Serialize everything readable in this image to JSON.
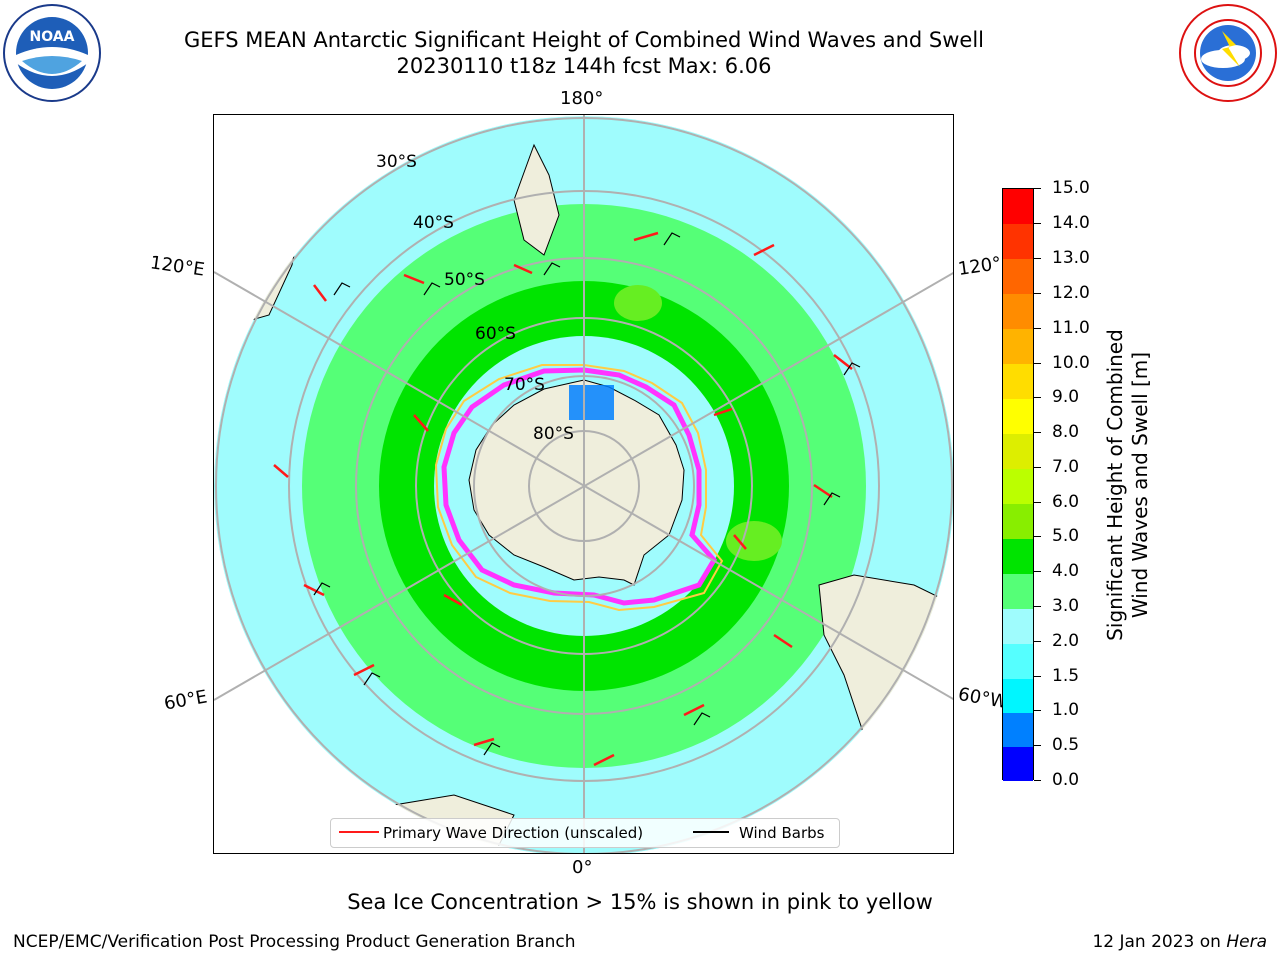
{
  "header": {
    "title_line1": "GEFS MEAN Antarctic Significant Height of Combined Wind Waves and Swell",
    "title_line2": "20230110 t18z 144h fcst   Max: 6.06"
  },
  "logos": {
    "noaa_text": "NOAA",
    "noaa_ring_text": "NATIONAL OCEANIC AND ATMOSPHERIC ADMINISTRATION · U.S. DEPARTMENT OF COMMERCE",
    "nws_ring_text": "NATIONAL WEATHER SERVICE"
  },
  "map": {
    "lon_labels": {
      "top": "180°",
      "bottom": "0°",
      "upper_left": "120°E",
      "lower_left": "60°E",
      "upper_right": "120°",
      "lower_right": "60°W"
    },
    "lat_labels": [
      "30°S",
      "40°S",
      "50°S",
      "60°S",
      "70°S",
      "80°S"
    ],
    "colors": {
      "ocean_low": "#9ffcfd",
      "ocean_mid": "#55ff77",
      "ocean_high": "#00e400",
      "peak": "#66ee22",
      "land": "#efeedc",
      "sea_ice_edge": "#ff33ff",
      "ice_yellow": "#ffcc44",
      "shallow": "#00f6ff",
      "deep_low": "#0066ff",
      "grid": "#b0b0b0",
      "arrow": "#ff1a1a"
    }
  },
  "legend": {
    "primary_wave": "Primary Wave Direction (unscaled)",
    "wind_barbs": "Wind Barbs"
  },
  "colorbar": {
    "label_line1": "Significant Height of Combined",
    "label_line2": "Wind Waves and Swell [m]",
    "ticks": [
      "15.0",
      "14.0",
      "13.0",
      "12.0",
      "11.0",
      "10.0",
      "9.0",
      "8.0",
      "7.0",
      "6.0",
      "5.0",
      "4.0",
      "3.0",
      "2.0",
      "1.5",
      "1.0",
      "0.5",
      "0.0"
    ],
    "bands_top_to_bottom": [
      "#ff0000",
      "#ff3300",
      "#ff6600",
      "#ff8c00",
      "#ffb300",
      "#ffdd00",
      "#ffff00",
      "#ddee00",
      "#bbff00",
      "#88ee00",
      "#00e400",
      "#55ff77",
      "#9ffcfd",
      "#55ffff",
      "#00f6ff",
      "#0080ff",
      "#0000ff"
    ]
  },
  "note": "Sea Ice Concentration > 15% is shown in pink to yellow",
  "footer": {
    "left": "NCEP/EMC/Verification Post Processing Product Generation Branch",
    "right_date": "12 Jan 2023 on ",
    "right_machine": "Hera"
  }
}
